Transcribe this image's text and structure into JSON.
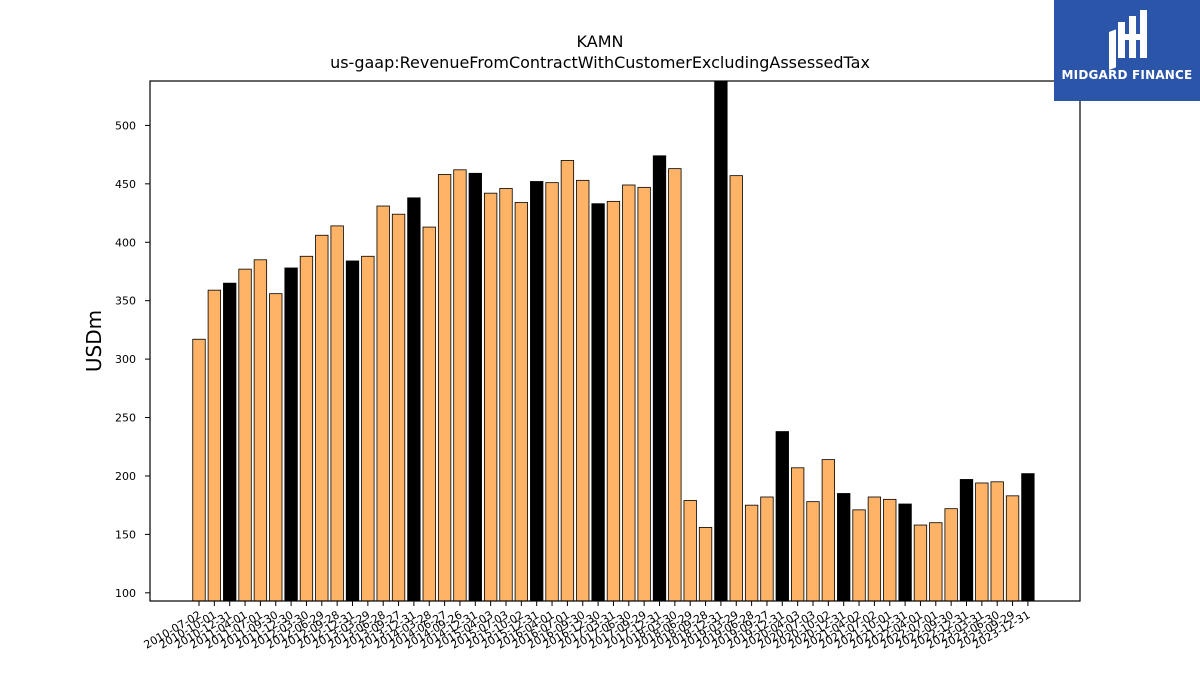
{
  "chart_data": {
    "type": "bar",
    "title": "KAMN",
    "subtitle": "us-gaap:RevenueFromContractWithCustomerExcludingAssessedTax",
    "xlabel": "",
    "ylabel": "USDm",
    "ylim": [
      93,
      538
    ],
    "yticks": [
      100,
      150,
      200,
      250,
      300,
      350,
      400,
      450,
      500
    ],
    "categories": [
      "2010-07-02",
      "2010-10-01",
      "2010-12-31",
      "2011-04-01",
      "2011-07-01",
      "2011-09-30",
      "2011-12-30",
      "2012-03-30",
      "2012-06-29",
      "2012-09-28",
      "2012-12-31",
      "2013-03-29",
      "2013-06-28",
      "2013-09-27",
      "2013-12-31",
      "2014-03-28",
      "2014-06-27",
      "2014-09-26",
      "2014-12-31",
      "2015-04-03",
      "2015-07-03",
      "2015-10-02",
      "2015-12-31",
      "2016-04-01",
      "2016-07-01",
      "2016-09-30",
      "2016-12-30",
      "2017-03-31",
      "2017-06-30",
      "2017-09-29",
      "2017-12-31",
      "2018-03-30",
      "2018-06-29",
      "2018-09-28",
      "2018-12-31",
      "2019-03-29",
      "2019-06-28",
      "2019-09-27",
      "2019-12-31",
      "2020-04-03",
      "2020-07-03",
      "2020-10-02",
      "2020-12-31",
      "2021-04-02",
      "2021-07-02",
      "2021-10-01",
      "2021-12-31",
      "2022-04-01",
      "2022-07-01",
      "2022-09-30",
      "2022-12-31",
      "2023-03-31",
      "2023-06-30",
      "2023-09-29",
      "2023-12-31"
    ],
    "values": [
      317,
      359,
      365,
      377,
      385,
      356,
      378,
      388,
      406,
      414,
      384,
      388,
      431,
      424,
      438,
      413,
      458,
      462,
      459,
      442,
      446,
      434,
      452,
      451,
      470,
      453,
      433,
      435,
      449,
      447,
      474,
      463,
      179,
      156,
      538,
      457,
      175,
      182,
      238,
      207,
      178,
      214,
      185,
      171,
      182,
      180,
      176,
      158,
      160,
      172,
      197,
      194,
      195,
      183,
      202
    ],
    "annual": [
      false,
      false,
      true,
      false,
      false,
      false,
      true,
      false,
      false,
      false,
      true,
      false,
      false,
      false,
      true,
      false,
      false,
      false,
      true,
      false,
      false,
      false,
      true,
      false,
      false,
      false,
      true,
      false,
      false,
      false,
      true,
      false,
      false,
      false,
      true,
      false,
      false,
      false,
      true,
      false,
      false,
      false,
      true,
      false,
      false,
      false,
      true,
      false,
      false,
      false,
      true,
      false,
      false,
      false,
      true
    ],
    "colors": {
      "quarter": "#ffb366",
      "annual": "#000000"
    },
    "grid": false,
    "legend": "none"
  },
  "logo": {
    "text": "MIDGARD FINANCE",
    "color": "#2a55a8"
  }
}
